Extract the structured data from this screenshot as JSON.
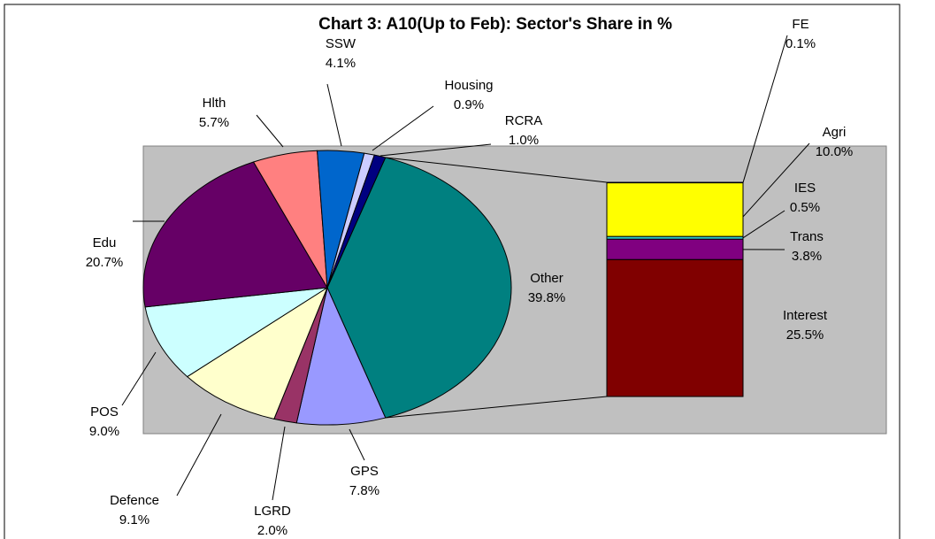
{
  "chart_data": {
    "type": "pie",
    "title": "Chart 3: A10(Up to Feb): Sector's Share in %",
    "categories": [
      "Other",
      "GPS",
      "LGRD",
      "Defence",
      "POS",
      "Edu",
      "Hlth",
      "SSW",
      "Housing",
      "RCRA"
    ],
    "values": [
      39.8,
      7.8,
      2.0,
      9.1,
      9.0,
      20.7,
      5.7,
      4.1,
      0.9,
      1.0
    ],
    "value_labels": [
      "39.8%",
      "7.8%",
      "2.0%",
      "9.1%",
      "9.0%",
      "20.7%",
      "5.7%",
      "4.1%",
      "0.9%",
      "1.0%"
    ],
    "colors": [
      "#008080",
      "#9999ff",
      "#993366",
      "#ffffcc",
      "#ccffff",
      "#660066",
      "#ff8080",
      "#0066cc",
      "#ccccff",
      "#000080"
    ],
    "breakdown": {
      "categories": [
        "FE",
        "Agri",
        "IES",
        "Trans",
        "Interest"
      ],
      "values": [
        0.1,
        10.0,
        0.5,
        3.8,
        25.5
      ],
      "value_labels": [
        "0.1%",
        "10.0%",
        "0.5%",
        "3.8%",
        "25.5%"
      ],
      "colors": [
        "#c0c0c0",
        "#ffff00",
        "#33cccc",
        "#800080",
        "#800000"
      ]
    }
  }
}
